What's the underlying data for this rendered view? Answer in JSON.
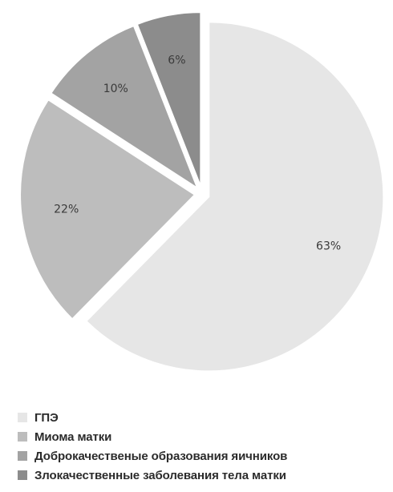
{
  "chart_data": {
    "type": "pie",
    "title": "",
    "categories": [
      "ГПЭ",
      "Миома матки",
      "Доброкачественые образования яичников",
      "Злокачественные заболевания тела матки"
    ],
    "values": [
      63,
      22,
      10,
      6
    ],
    "value_labels": [
      "63%",
      "22%",
      "10%",
      "6%"
    ],
    "colors": [
      "#e6e6e6",
      "#bdbdbd",
      "#a3a3a3",
      "#8c8c8c"
    ],
    "exploded": true,
    "legend_position": "bottom"
  }
}
